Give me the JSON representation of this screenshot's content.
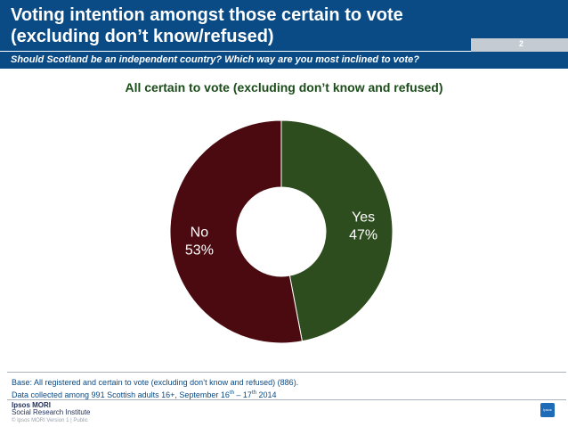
{
  "header": {
    "title": "Voting intention amongst those certain to vote\n(excluding don’t know/refused)",
    "page_number": "2",
    "question": "Should Scotland be an independent country? Which way are you most inclined to vote?"
  },
  "chart_data": {
    "type": "pie",
    "donut": true,
    "title": "All certain to vote (excluding don’t know and refused)",
    "slices": [
      {
        "name": "Yes",
        "value": 47,
        "label": "47%",
        "color": "#2e4d1e"
      },
      {
        "name": "No",
        "value": 53,
        "label": "53%",
        "color": "#4a0a10"
      }
    ],
    "start": "12 o'clock",
    "direction": "clockwise"
  },
  "footer": {
    "base_line1": "Base: All registered and certain to vote (excluding don’t know and refused) (886).",
    "base_line2_prefix": "Data collected among 991 Scottish adults 16+, September 16",
    "base_line2_sup1": "th",
    "base_line2_mid": " – 17",
    "base_line2_sup2": "th",
    "base_line2_suffix": " 2014",
    "logo_line1": "Ipsos MORI",
    "logo_line2": "Social Research Institute",
    "copyright": "© Ipsos MORI   Version 1 | Public",
    "brand_mark": "Ipsos"
  }
}
